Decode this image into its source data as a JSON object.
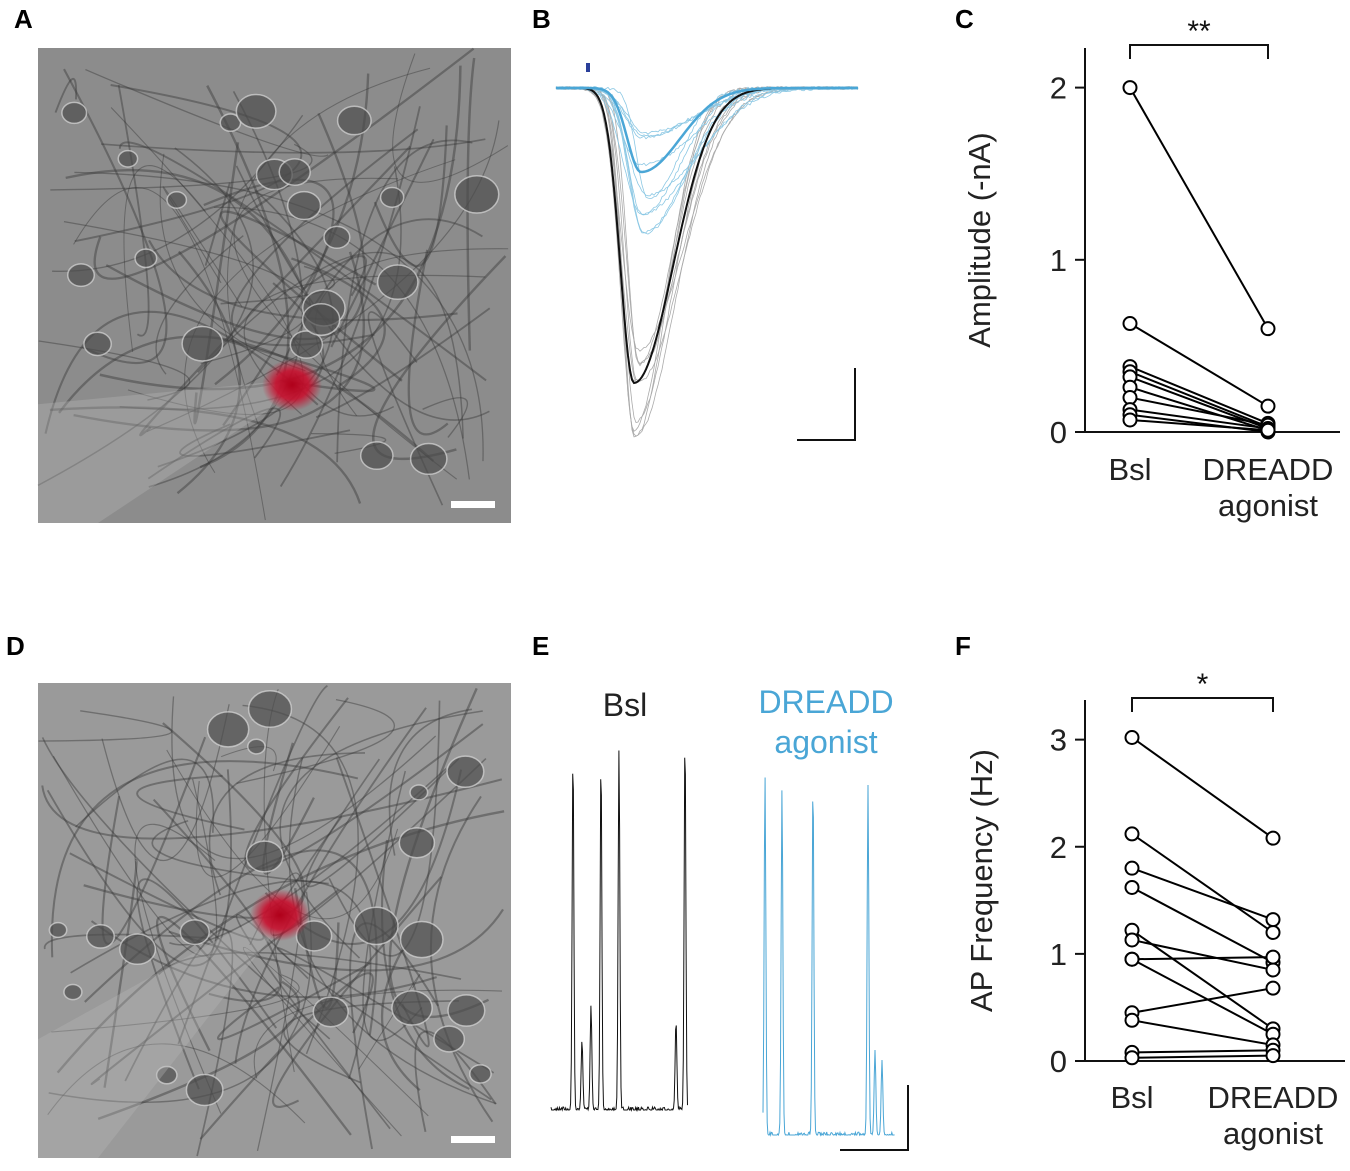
{
  "panels": [
    "A",
    "B",
    "C",
    "D",
    "E",
    "F"
  ],
  "trace_labels": {
    "baseline": "Bsl",
    "agonist": "DREADD agonist"
  },
  "chart_data": [
    {
      "type": "paired",
      "ylabel": "Amplitude (-nA)",
      "annotation": "**",
      "categories": [
        "Bsl",
        "DREADD agonist"
      ],
      "ylim": [
        0,
        2.23
      ],
      "yticks": [
        0,
        1,
        2
      ],
      "color": "#000000",
      "series": [
        {
          "values": [
            2.0,
            0.6
          ]
        },
        {
          "values": [
            0.63,
            0.15
          ]
        },
        {
          "values": [
            0.38,
            0.05
          ]
        },
        {
          "values": [
            0.35,
            0.03
          ]
        },
        {
          "values": [
            0.32,
            0.02
          ]
        },
        {
          "values": [
            0.26,
            0.01
          ]
        },
        {
          "values": [
            0.2,
            0.04
          ]
        },
        {
          "values": [
            0.13,
            0.02
          ]
        },
        {
          "values": [
            0.1,
            0.0
          ]
        },
        {
          "values": [
            0.07,
            0.01
          ]
        }
      ]
    },
    {
      "type": "paired",
      "ylabel": "AP Frequency (Hz)",
      "annotation": "*",
      "categories": [
        "Bsl",
        "DREADD agonist"
      ],
      "ylim": [
        0,
        3.37
      ],
      "yticks": [
        0,
        1,
        2,
        3
      ],
      "color": "#000000",
      "series": [
        {
          "values": [
            3.02,
            2.08
          ]
        },
        {
          "values": [
            2.12,
            1.2
          ]
        },
        {
          "values": [
            1.8,
            1.32
          ]
        },
        {
          "values": [
            1.62,
            0.92
          ]
        },
        {
          "values": [
            1.22,
            0.3
          ]
        },
        {
          "values": [
            1.13,
            0.85
          ]
        },
        {
          "values": [
            0.95,
            0.97
          ]
        },
        {
          "values": [
            0.95,
            0.25
          ]
        },
        {
          "values": [
            0.45,
            0.68
          ]
        },
        {
          "values": [
            0.38,
            0.15
          ]
        },
        {
          "values": [
            0.08,
            0.1
          ]
        },
        {
          "values": [
            0.03,
            0.05
          ]
        }
      ]
    }
  ]
}
